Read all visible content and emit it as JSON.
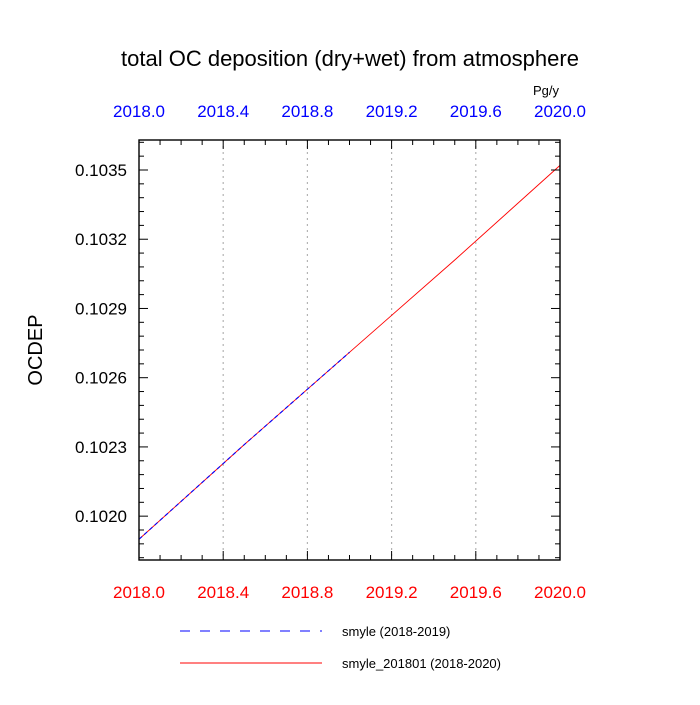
{
  "chart_data": {
    "type": "line",
    "title": "total OC deposition (dry+wet) from atmosphere",
    "ylabel": "OCDEP",
    "units_label": "Pg/y",
    "xlim": [
      2018.0,
      2020.0
    ],
    "ylim": [
      0.10181,
      0.10363
    ],
    "x_ticks": [
      2018.0,
      2018.4,
      2018.8,
      2019.2,
      2019.6,
      2020.0
    ],
    "x_tick_labels": [
      "2018.0",
      "2018.4",
      "2018.8",
      "2019.2",
      "2019.6",
      "2020.0"
    ],
    "y_ticks": [
      0.102,
      0.1023,
      0.1026,
      0.1029,
      0.1032,
      0.1035
    ],
    "y_tick_labels": [
      "0.1020",
      "0.1023",
      "0.1026",
      "0.1029",
      "0.1032",
      "0.1035"
    ],
    "grid": "vertical-dotted",
    "colors": {
      "top_axis_labels": "#0000ff",
      "bottom_axis_labels": "#ff0000"
    },
    "series": [
      {
        "name": "smyle_201801 (2018-2020)",
        "color": "#ff0000",
        "style": "solid",
        "x": [
          2018.0,
          2018.5,
          2019.0,
          2019.5,
          2020.0
        ],
        "values": [
          0.1019,
          0.10231,
          0.10271,
          0.10311,
          0.10352
        ]
      },
      {
        "name": "smyle (2018-2019)",
        "color": "#0000ff",
        "style": "dashed",
        "x": [
          2018.0,
          2018.5,
          2019.0
        ],
        "values": [
          0.1019,
          0.10231,
          0.10271
        ]
      }
    ],
    "legend": {
      "placement": "bottom",
      "entries": [
        "smyle (2018-2019)",
        "smyle_201801 (2018-2020)"
      ]
    }
  }
}
